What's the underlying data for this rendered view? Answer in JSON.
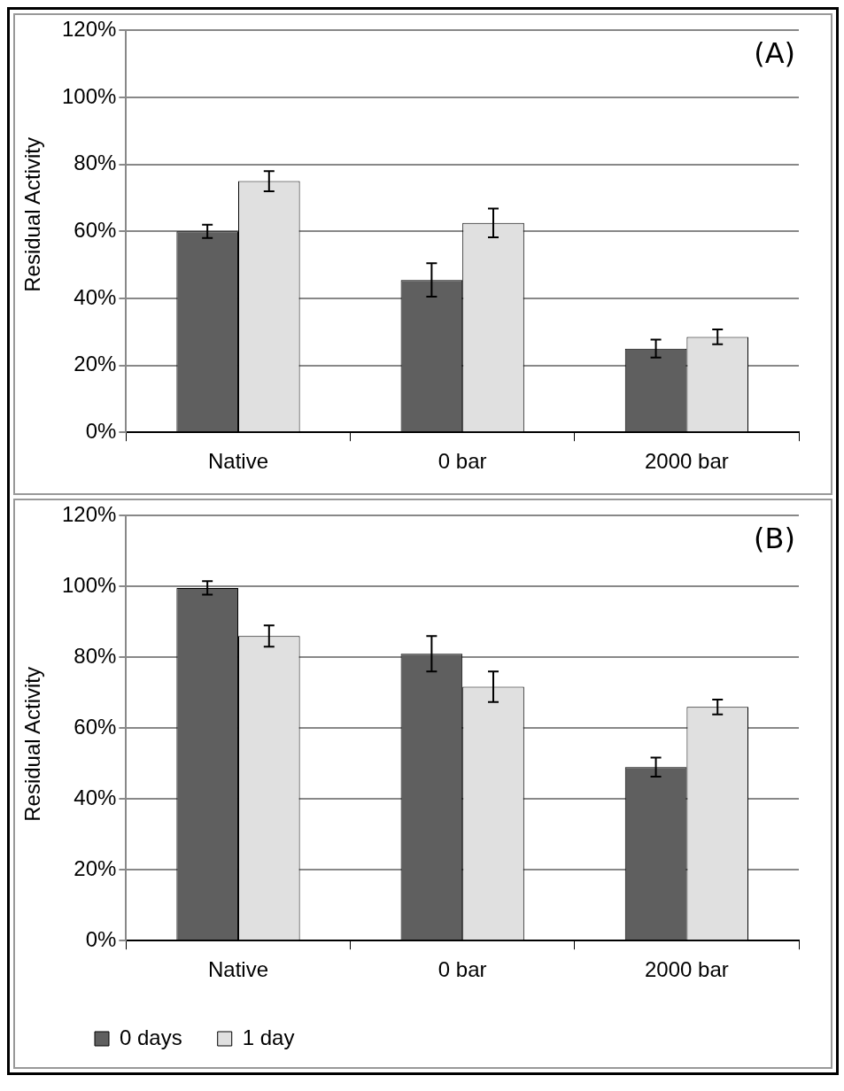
{
  "chart_data": [
    {
      "type": "bar",
      "categories": [
        "Native",
        "0 bar",
        "2000 bar"
      ],
      "ylabel": "Residual Activity",
      "annotations": [
        "(A)"
      ],
      "series": [
        {
          "color": "#5f5f5f",
          "values": [
            60,
            45.5,
            25
          ],
          "errors": [
            2,
            5,
            2.7
          ]
        },
        {
          "color": "#e0e0e0",
          "values": [
            75,
            62.5,
            28.5
          ],
          "errors": [
            3,
            4.3,
            2.2
          ]
        }
      ],
      "ylim": [
        0,
        120
      ],
      "yticks": [
        {
          "value": 0,
          "label": "0%"
        },
        {
          "value": 20,
          "label": "20%"
        },
        {
          "value": 40,
          "label": "40%"
        },
        {
          "value": 60,
          "label": "60%"
        },
        {
          "value": 80,
          "label": "80%"
        },
        {
          "value": 100,
          "label": "100%"
        },
        {
          "value": 120,
          "label": "120%"
        }
      ],
      "grid": "y",
      "legend": false
    },
    {
      "type": "bar",
      "categories": [
        "Native",
        "0 bar",
        "2000 bar"
      ],
      "ylabel": "Residual Activity",
      "annotations": [
        "(B)"
      ],
      "series": [
        {
          "name": "0 days",
          "color": "#5f5f5f",
          "values": [
            99.6,
            81,
            49
          ],
          "errors": [
            1.9,
            5,
            2.7
          ]
        },
        {
          "name": "1 day",
          "color": "#e0e0e0",
          "values": [
            86,
            71.7,
            66
          ],
          "errors": [
            3,
            4.3,
            2.1
          ]
        }
      ],
      "ylim": [
        0,
        120
      ],
      "yticks": [
        {
          "value": 0,
          "label": "0%"
        },
        {
          "value": 20,
          "label": "20%"
        },
        {
          "value": 40,
          "label": "40%"
        },
        {
          "value": 60,
          "label": "60%"
        },
        {
          "value": 80,
          "label": "80%"
        },
        {
          "value": 100,
          "label": "100%"
        },
        {
          "value": 120,
          "label": "120%"
        }
      ],
      "grid": "y",
      "legend": "bottom"
    }
  ]
}
